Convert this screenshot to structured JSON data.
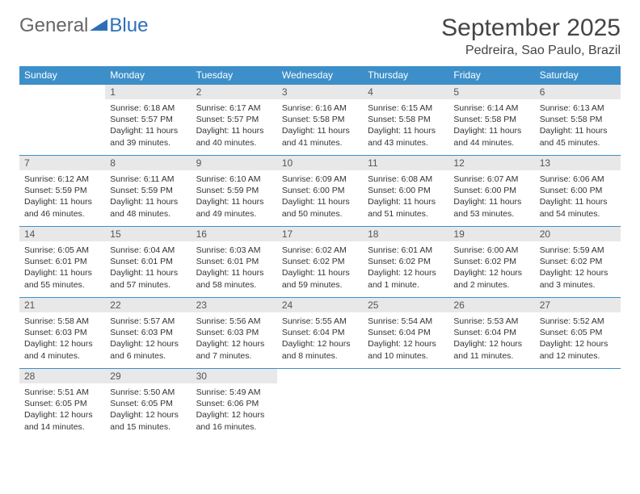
{
  "logo": {
    "general": "General",
    "blue": "Blue"
  },
  "title": {
    "month": "September 2025",
    "location": "Pedreira, Sao Paulo, Brazil"
  },
  "colors": {
    "header_bg": "#3d8fc9",
    "daynum_bg": "#e8e8e8",
    "accent": "#2d6fb7"
  },
  "weekdays": [
    "Sunday",
    "Monday",
    "Tuesday",
    "Wednesday",
    "Thursday",
    "Friday",
    "Saturday"
  ],
  "days": {
    "1": {
      "sunrise": "Sunrise: 6:18 AM",
      "sunset": "Sunset: 5:57 PM",
      "daylight": "Daylight: 11 hours and 39 minutes."
    },
    "2": {
      "sunrise": "Sunrise: 6:17 AM",
      "sunset": "Sunset: 5:57 PM",
      "daylight": "Daylight: 11 hours and 40 minutes."
    },
    "3": {
      "sunrise": "Sunrise: 6:16 AM",
      "sunset": "Sunset: 5:58 PM",
      "daylight": "Daylight: 11 hours and 41 minutes."
    },
    "4": {
      "sunrise": "Sunrise: 6:15 AM",
      "sunset": "Sunset: 5:58 PM",
      "daylight": "Daylight: 11 hours and 43 minutes."
    },
    "5": {
      "sunrise": "Sunrise: 6:14 AM",
      "sunset": "Sunset: 5:58 PM",
      "daylight": "Daylight: 11 hours and 44 minutes."
    },
    "6": {
      "sunrise": "Sunrise: 6:13 AM",
      "sunset": "Sunset: 5:58 PM",
      "daylight": "Daylight: 11 hours and 45 minutes."
    },
    "7": {
      "sunrise": "Sunrise: 6:12 AM",
      "sunset": "Sunset: 5:59 PM",
      "daylight": "Daylight: 11 hours and 46 minutes."
    },
    "8": {
      "sunrise": "Sunrise: 6:11 AM",
      "sunset": "Sunset: 5:59 PM",
      "daylight": "Daylight: 11 hours and 48 minutes."
    },
    "9": {
      "sunrise": "Sunrise: 6:10 AM",
      "sunset": "Sunset: 5:59 PM",
      "daylight": "Daylight: 11 hours and 49 minutes."
    },
    "10": {
      "sunrise": "Sunrise: 6:09 AM",
      "sunset": "Sunset: 6:00 PM",
      "daylight": "Daylight: 11 hours and 50 minutes."
    },
    "11": {
      "sunrise": "Sunrise: 6:08 AM",
      "sunset": "Sunset: 6:00 PM",
      "daylight": "Daylight: 11 hours and 51 minutes."
    },
    "12": {
      "sunrise": "Sunrise: 6:07 AM",
      "sunset": "Sunset: 6:00 PM",
      "daylight": "Daylight: 11 hours and 53 minutes."
    },
    "13": {
      "sunrise": "Sunrise: 6:06 AM",
      "sunset": "Sunset: 6:00 PM",
      "daylight": "Daylight: 11 hours and 54 minutes."
    },
    "14": {
      "sunrise": "Sunrise: 6:05 AM",
      "sunset": "Sunset: 6:01 PM",
      "daylight": "Daylight: 11 hours and 55 minutes."
    },
    "15": {
      "sunrise": "Sunrise: 6:04 AM",
      "sunset": "Sunset: 6:01 PM",
      "daylight": "Daylight: 11 hours and 57 minutes."
    },
    "16": {
      "sunrise": "Sunrise: 6:03 AM",
      "sunset": "Sunset: 6:01 PM",
      "daylight": "Daylight: 11 hours and 58 minutes."
    },
    "17": {
      "sunrise": "Sunrise: 6:02 AM",
      "sunset": "Sunset: 6:02 PM",
      "daylight": "Daylight: 11 hours and 59 minutes."
    },
    "18": {
      "sunrise": "Sunrise: 6:01 AM",
      "sunset": "Sunset: 6:02 PM",
      "daylight": "Daylight: 12 hours and 1 minute."
    },
    "19": {
      "sunrise": "Sunrise: 6:00 AM",
      "sunset": "Sunset: 6:02 PM",
      "daylight": "Daylight: 12 hours and 2 minutes."
    },
    "20": {
      "sunrise": "Sunrise: 5:59 AM",
      "sunset": "Sunset: 6:02 PM",
      "daylight": "Daylight: 12 hours and 3 minutes."
    },
    "21": {
      "sunrise": "Sunrise: 5:58 AM",
      "sunset": "Sunset: 6:03 PM",
      "daylight": "Daylight: 12 hours and 4 minutes."
    },
    "22": {
      "sunrise": "Sunrise: 5:57 AM",
      "sunset": "Sunset: 6:03 PM",
      "daylight": "Daylight: 12 hours and 6 minutes."
    },
    "23": {
      "sunrise": "Sunrise: 5:56 AM",
      "sunset": "Sunset: 6:03 PM",
      "daylight": "Daylight: 12 hours and 7 minutes."
    },
    "24": {
      "sunrise": "Sunrise: 5:55 AM",
      "sunset": "Sunset: 6:04 PM",
      "daylight": "Daylight: 12 hours and 8 minutes."
    },
    "25": {
      "sunrise": "Sunrise: 5:54 AM",
      "sunset": "Sunset: 6:04 PM",
      "daylight": "Daylight: 12 hours and 10 minutes."
    },
    "26": {
      "sunrise": "Sunrise: 5:53 AM",
      "sunset": "Sunset: 6:04 PM",
      "daylight": "Daylight: 12 hours and 11 minutes."
    },
    "27": {
      "sunrise": "Sunrise: 5:52 AM",
      "sunset": "Sunset: 6:05 PM",
      "daylight": "Daylight: 12 hours and 12 minutes."
    },
    "28": {
      "sunrise": "Sunrise: 5:51 AM",
      "sunset": "Sunset: 6:05 PM",
      "daylight": "Daylight: 12 hours and 14 minutes."
    },
    "29": {
      "sunrise": "Sunrise: 5:50 AM",
      "sunset": "Sunset: 6:05 PM",
      "daylight": "Daylight: 12 hours and 15 minutes."
    },
    "30": {
      "sunrise": "Sunrise: 5:49 AM",
      "sunset": "Sunset: 6:06 PM",
      "daylight": "Daylight: 12 hours and 16 minutes."
    }
  },
  "layout": {
    "first_weekday_index": 1,
    "num_days": 30
  }
}
